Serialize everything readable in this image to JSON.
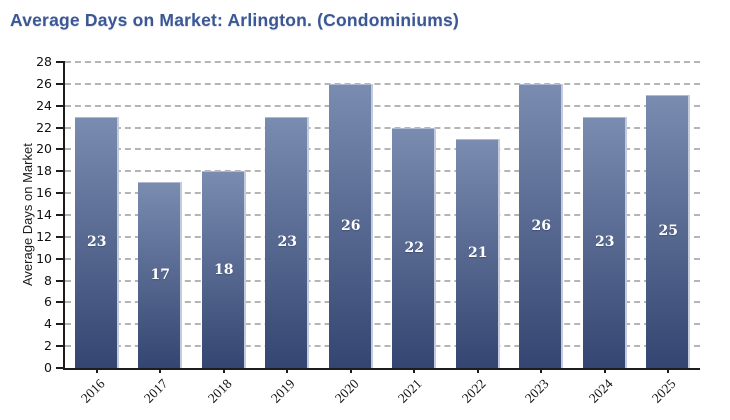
{
  "page": {
    "title": "Average Days on Market: Arlington. (Condominiums)"
  },
  "colors": {
    "title": "#3b5795",
    "bar_gradient_top": "#7a8cb0",
    "bar_gradient_bottom": "#344571",
    "bar_edge_highlight": "#c3cbdd",
    "bar_label": "#ffffff",
    "gridline": "#b5b5b5",
    "axis": "#1c1c1c",
    "tick_label": "#111111"
  },
  "chart_data": {
    "type": "bar",
    "title": "Average Days on Market: Arlington. (Condominiums)",
    "categories": [
      "2016",
      "2017",
      "2018",
      "2019",
      "2020",
      "2021",
      "2022",
      "2023",
      "2024",
      "2025"
    ],
    "values": [
      23,
      17,
      18,
      23,
      26,
      22,
      21,
      26,
      23,
      25
    ],
    "xlabel": "",
    "ylabel": "Average Days on Market",
    "ylim": [
      0,
      28
    ],
    "ytick_step": 2,
    "grid": "horizontal-dashed",
    "legend": "none",
    "data_labels": "white bold values centered inside each bar",
    "x_tick_label_rotation_deg": -45
  }
}
